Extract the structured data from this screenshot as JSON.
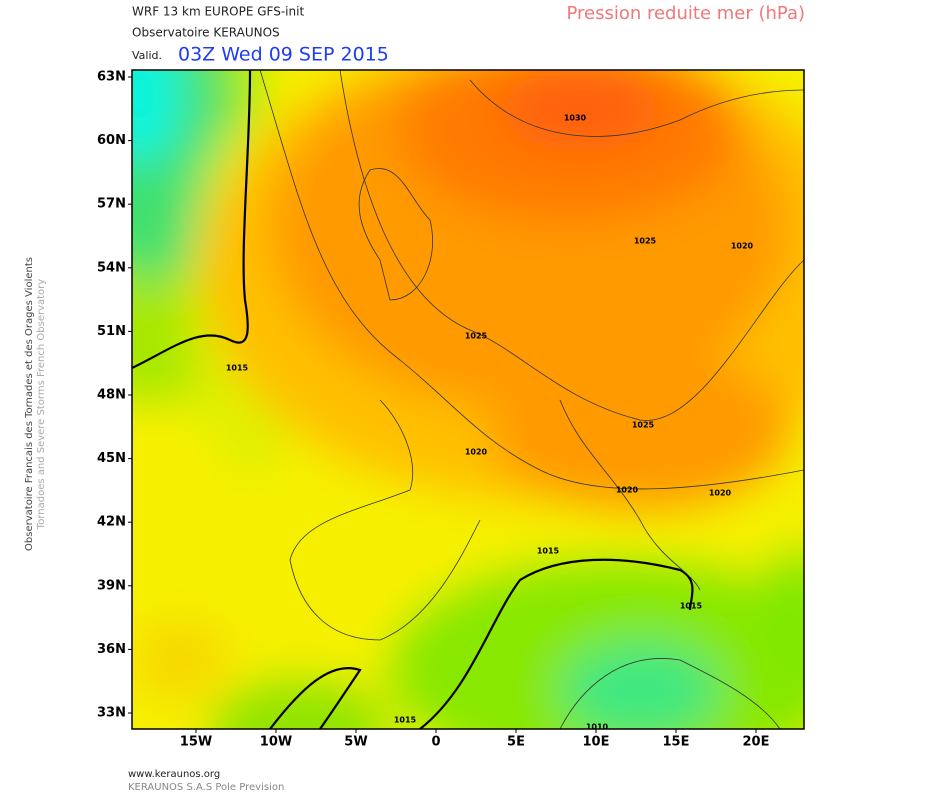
{
  "header": {
    "model": "WRF 13 km EUROPE  GFS-init",
    "source": "Observatoire KERAUNOS",
    "valid_prefix": "Valid.",
    "valid_time": "03Z Wed 09 SEP 2015",
    "parameter": "Pression reduite mer (hPa)"
  },
  "side": {
    "line1": "Observatoire Francais des Tornades et des Orages Violents",
    "line2": "Tornadoes and Severe Storms French Observatory"
  },
  "axes": {
    "lat_labels": [
      "63N",
      "60N",
      "57N",
      "54N",
      "51N",
      "48N",
      "45N",
      "42N",
      "39N",
      "36N",
      "33N"
    ],
    "lon_labels": [
      "15W",
      "10W",
      "5W",
      "0",
      "5E",
      "10E",
      "15E",
      "20E"
    ]
  },
  "contour_labels": [
    "1030",
    "1025",
    "1025",
    "1025",
    "1020",
    "1020",
    "1020",
    "1020",
    "1015",
    "1015",
    "1015",
    "1015",
    "1010"
  ],
  "footer": {
    "url": "www.keraunos.org",
    "company": "KERAUNOS S.A.S Pole Prevision"
  }
}
